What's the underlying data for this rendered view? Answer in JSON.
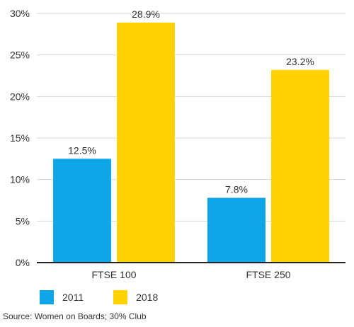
{
  "chart_data": {
    "type": "bar",
    "categories": [
      "FTSE 100",
      "FTSE 250"
    ],
    "series": [
      {
        "name": "2011",
        "color": "#0ea5e9",
        "values": [
          12.5,
          7.8
        ],
        "labels": [
          "12.5%",
          "7.8%"
        ]
      },
      {
        "name": "2018",
        "color": "#ffd200",
        "values": [
          28.9,
          23.2
        ],
        "labels": [
          "28.9%",
          "23.2%"
        ]
      }
    ],
    "yticks": [
      "0%",
      "5%",
      "10%",
      "15%",
      "20%",
      "25%",
      "30%"
    ],
    "ylim": [
      0,
      30
    ],
    "grid": true,
    "legend_position": "bottom-left"
  },
  "source": "Source: Women on Boards; 30% Club"
}
